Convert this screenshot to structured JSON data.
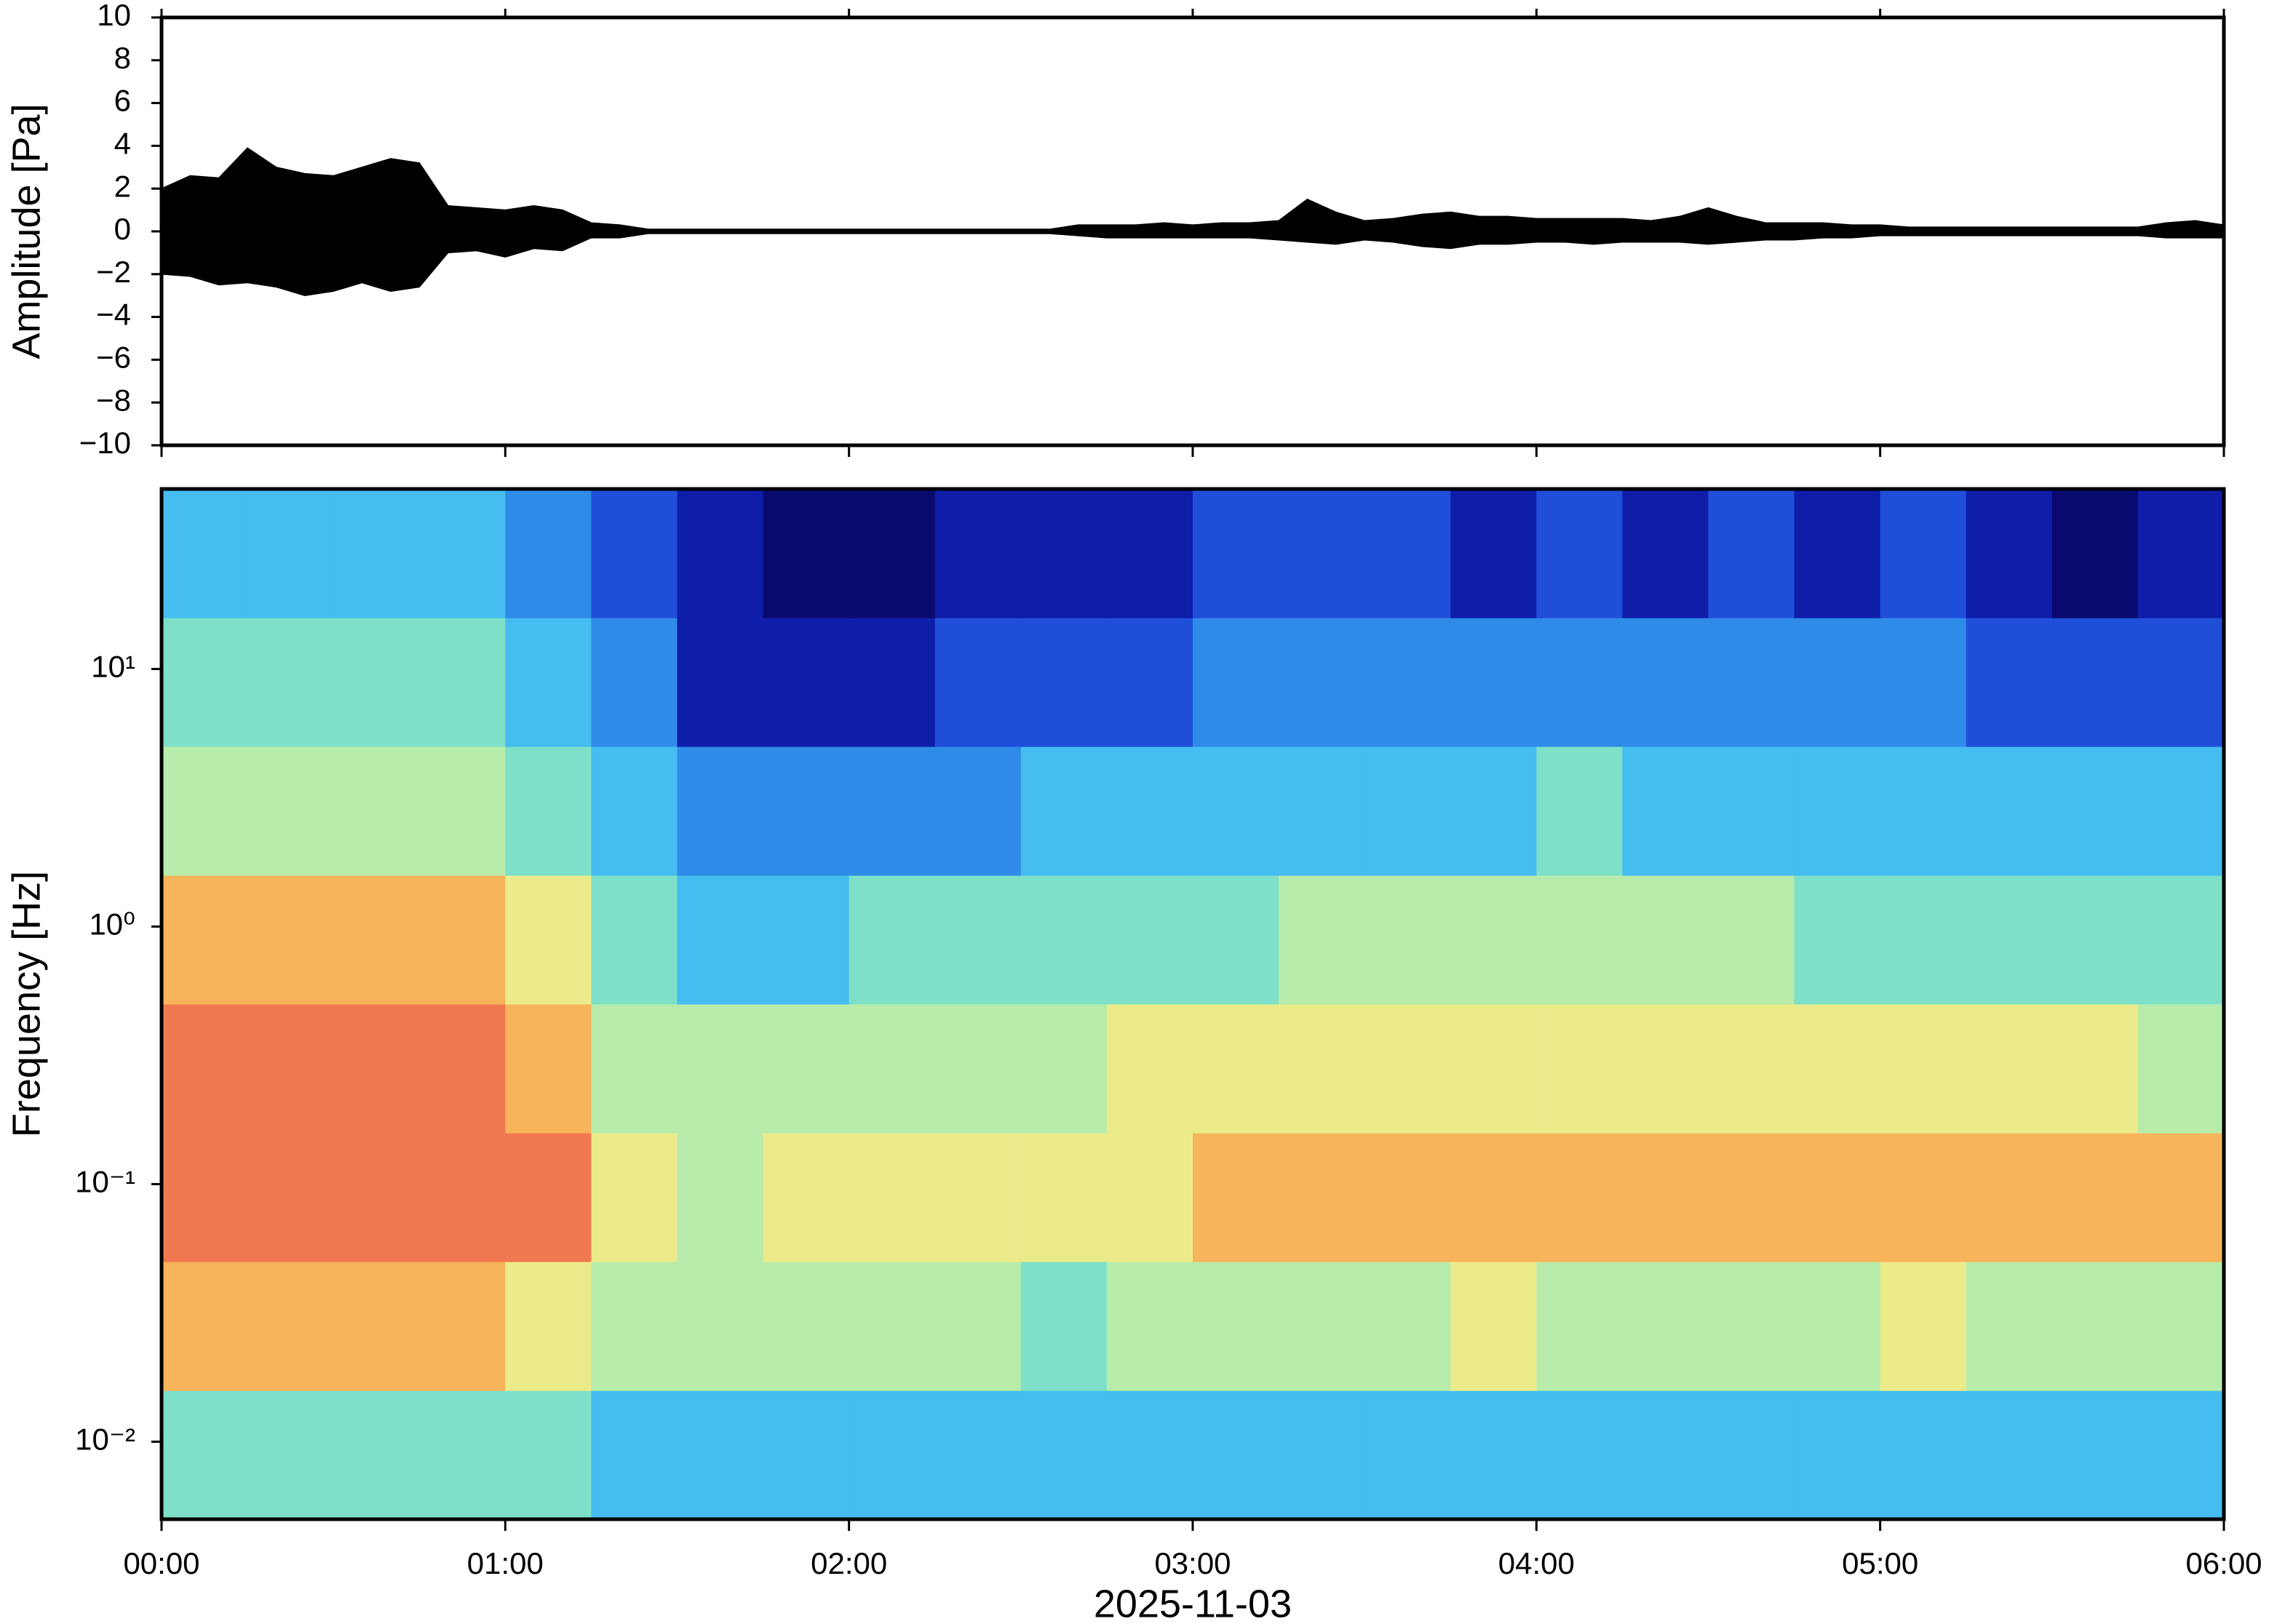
{
  "chart_data": [
    {
      "type": "line",
      "ylabel": "Amplitude [Pa]",
      "color": "#000000",
      "xlim": [
        0,
        360
      ],
      "x": [
        0,
        5,
        10,
        15,
        20,
        25,
        30,
        35,
        40,
        45,
        50,
        55,
        60,
        65,
        70,
        75,
        80,
        85,
        90,
        95,
        100,
        105,
        110,
        115,
        120,
        125,
        130,
        135,
        140,
        145,
        150,
        155,
        160,
        165,
        170,
        175,
        180,
        185,
        190,
        195,
        200,
        205,
        210,
        215,
        220,
        225,
        230,
        235,
        240,
        245,
        250,
        255,
        260,
        265,
        270,
        275,
        280,
        285,
        290,
        295,
        300,
        305,
        310,
        315,
        320,
        325,
        330,
        335,
        340,
        345,
        350,
        355,
        360
      ],
      "upper": [
        2.0,
        2.6,
        2.5,
        3.9,
        3.0,
        2.7,
        2.6,
        3.0,
        3.4,
        3.2,
        1.2,
        1.1,
        1.0,
        1.2,
        1.0,
        0.4,
        0.3,
        0.1,
        0.1,
        0.1,
        0.1,
        0.1,
        0.1,
        0.1,
        0.1,
        0.1,
        0.1,
        0.1,
        0.1,
        0.1,
        0.1,
        0.1,
        0.3,
        0.3,
        0.3,
        0.4,
        0.3,
        0.4,
        0.4,
        0.5,
        1.5,
        0.9,
        0.5,
        0.6,
        0.8,
        0.9,
        0.7,
        0.7,
        0.6,
        0.6,
        0.6,
        0.6,
        0.5,
        0.7,
        1.1,
        0.7,
        0.4,
        0.4,
        0.4,
        0.3,
        0.3,
        0.2,
        0.2,
        0.2,
        0.2,
        0.2,
        0.2,
        0.2,
        0.2,
        0.2,
        0.4,
        0.5,
        0.3
      ],
      "lower": [
        -2.0,
        -2.1,
        -2.5,
        -2.4,
        -2.6,
        -3.0,
        -2.8,
        -2.4,
        -2.8,
        -2.6,
        -1.0,
        -0.9,
        -1.2,
        -0.8,
        -0.9,
        -0.3,
        -0.3,
        -0.1,
        -0.1,
        -0.1,
        -0.1,
        -0.1,
        -0.1,
        -0.1,
        -0.1,
        -0.1,
        -0.1,
        -0.1,
        -0.1,
        -0.1,
        -0.1,
        -0.1,
        -0.2,
        -0.3,
        -0.3,
        -0.3,
        -0.3,
        -0.3,
        -0.3,
        -0.4,
        -0.5,
        -0.6,
        -0.4,
        -0.5,
        -0.7,
        -0.8,
        -0.6,
        -0.6,
        -0.5,
        -0.5,
        -0.6,
        -0.5,
        -0.5,
        -0.5,
        -0.6,
        -0.5,
        -0.4,
        -0.4,
        -0.3,
        -0.3,
        -0.2,
        -0.2,
        -0.2,
        -0.2,
        -0.2,
        -0.2,
        -0.2,
        -0.2,
        -0.2,
        -0.2,
        -0.3,
        -0.3,
        -0.3
      ],
      "ylim": [
        -10,
        10
      ],
      "yticks": [
        {
          "value": -10,
          "label": "−10"
        },
        {
          "value": -8,
          "label": "−8"
        },
        {
          "value": -6,
          "label": "−6"
        },
        {
          "value": -4,
          "label": "−4"
        },
        {
          "value": -2,
          "label": "−2"
        },
        0,
        2,
        4,
        6,
        8,
        10
      ]
    },
    {
      "type": "heatmap",
      "ylabel": "Frequency [Hz]",
      "xlabel": "2025-11-03",
      "yscale": "log",
      "xlim": [
        0,
        360
      ],
      "xticks": [
        {
          "value": 0,
          "label": "00:00"
        },
        {
          "value": 60,
          "label": "01:00"
        },
        {
          "value": 120,
          "label": "02:00"
        },
        {
          "value": 180,
          "label": "03:00"
        },
        {
          "value": 240,
          "label": "04:00"
        },
        {
          "value": 300,
          "label": "05:00"
        },
        {
          "value": 360,
          "label": "06:00"
        }
      ],
      "ylim": [
        0.005,
        50
      ],
      "yticks": [
        {
          "value": 0.01,
          "label": "10⁻²"
        },
        {
          "value": 0.1,
          "label": "10⁻¹"
        },
        {
          "value": 1,
          "label": "10⁰"
        },
        {
          "value": 10,
          "label": "10¹"
        }
      ],
      "x_edges": [
        0,
        15,
        30,
        45,
        60,
        75,
        90,
        105,
        120,
        135,
        150,
        165,
        180,
        195,
        210,
        225,
        240,
        255,
        270,
        285,
        300,
        315,
        330,
        345,
        360
      ],
      "y_edges": [
        0.005,
        0.0158,
        0.05,
        0.158,
        0.5,
        1.58,
        5,
        15.8,
        50
      ],
      "colormap": [
        "#0a0a6e",
        "#0e1ea8",
        "#1f4fd8",
        "#2f8be8",
        "#45bdf0",
        "#7ee0c8",
        "#b8ecaa",
        "#eceb8a",
        "#f7b45a",
        "#f07850",
        "#ec5a5a"
      ],
      "z": [
        [
          5,
          5,
          5,
          5,
          5,
          4,
          4,
          4,
          4,
          4,
          4,
          4,
          4,
          4,
          4,
          4,
          4,
          4,
          4,
          4,
          4,
          4,
          4,
          4
        ],
        [
          8,
          8,
          8,
          8,
          7,
          6,
          6,
          6,
          6,
          6,
          5,
          6,
          6,
          6,
          6,
          7,
          6,
          6,
          6,
          6,
          7,
          6,
          6,
          6
        ],
        [
          9,
          9,
          9,
          9,
          9,
          7,
          6,
          7,
          7,
          7,
          7,
          7,
          8,
          8,
          8,
          8,
          8,
          8,
          8,
          8,
          8,
          8,
          8,
          8
        ],
        [
          9,
          9,
          9,
          9,
          8,
          6,
          6,
          6,
          6,
          6,
          6,
          7,
          7,
          7,
          7,
          7,
          7,
          7,
          7,
          7,
          7,
          7,
          7,
          6
        ],
        [
          8,
          8,
          8,
          8,
          7,
          5,
          4,
          4,
          5,
          5,
          5,
          5,
          5,
          6,
          6,
          6,
          6,
          6,
          6,
          5,
          5,
          5,
          5,
          5
        ],
        [
          6,
          6,
          6,
          6,
          5,
          4,
          3,
          3,
          3,
          3,
          4,
          4,
          4,
          4,
          4,
          4,
          5,
          4,
          4,
          4,
          4,
          4,
          4,
          4
        ],
        [
          5,
          5,
          5,
          5,
          4,
          3,
          1,
          1,
          1,
          2,
          2,
          2,
          3,
          3,
          3,
          3,
          3,
          3,
          3,
          3,
          3,
          2,
          2,
          2
        ],
        [
          4,
          4,
          4,
          4,
          3,
          2,
          1,
          0,
          0,
          1,
          1,
          1,
          2,
          2,
          2,
          1,
          2,
          1,
          2,
          1,
          2,
          1,
          0,
          1
        ]
      ]
    }
  ]
}
